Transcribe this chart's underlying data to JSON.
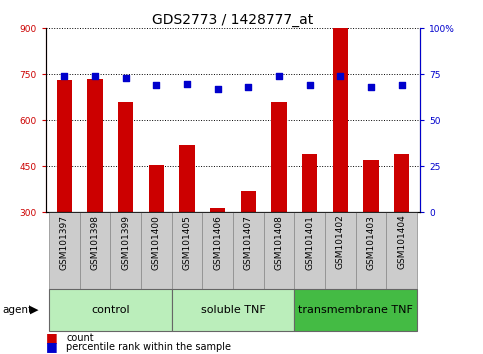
{
  "title": "GDS2773 / 1428777_at",
  "samples": [
    "GSM101397",
    "GSM101398",
    "GSM101399",
    "GSM101400",
    "GSM101405",
    "GSM101406",
    "GSM101407",
    "GSM101408",
    "GSM101401",
    "GSM101402",
    "GSM101403",
    "GSM101404"
  ],
  "counts": [
    730,
    735,
    660,
    455,
    520,
    315,
    370,
    660,
    490,
    900,
    470,
    490
  ],
  "percentiles": [
    74,
    74,
    73,
    69,
    70,
    67,
    68,
    74,
    69,
    74,
    68,
    69
  ],
  "ylim_left": [
    300,
    900
  ],
  "ylim_right": [
    0,
    100
  ],
  "yticks_left": [
    300,
    450,
    600,
    750,
    900
  ],
  "yticks_right": [
    0,
    25,
    50,
    75,
    100
  ],
  "ytick_labels_right": [
    "0",
    "25",
    "50",
    "75",
    "100%"
  ],
  "bar_color": "#cc0000",
  "dot_color": "#0000cc",
  "bar_width": 0.5,
  "group_labels": [
    "control",
    "soluble TNF",
    "transmembrane TNF"
  ],
  "group_ranges": [
    [
      0,
      3
    ],
    [
      4,
      7
    ],
    [
      8,
      11
    ]
  ],
  "group_bg_colors": [
    "#bbeebb",
    "#bbeebb",
    "#44bb44"
  ],
  "group_border_color": "#666666",
  "sample_box_color": "#cccccc",
  "sample_box_border": "#888888",
  "agent_label": "agent",
  "legend_items": [
    {
      "label": "count",
      "color": "#cc0000"
    },
    {
      "label": "percentile rank within the sample",
      "color": "#0000cc"
    }
  ],
  "title_fontsize": 10,
  "tick_fontsize": 6.5,
  "group_label_fontsize": 8,
  "legend_fontsize": 7
}
